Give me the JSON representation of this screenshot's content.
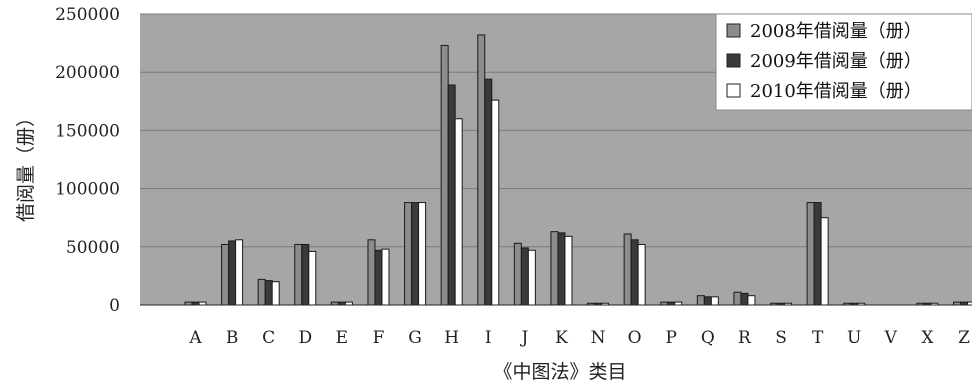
{
  "chart_data": {
    "type": "bar",
    "title": "",
    "xlabel": "《中图法》类目",
    "ylabel": "借阅量（册）",
    "ylim": [
      0,
      250000
    ],
    "yticks": [
      0,
      50000,
      100000,
      150000,
      200000,
      250000
    ],
    "ytick_labels": [
      "0",
      "50000",
      "100000",
      "150000",
      "200000",
      "250000"
    ],
    "grid": true,
    "legend_position": "top-right",
    "categories": [
      "A",
      "B",
      "C",
      "D",
      "E",
      "F",
      "G",
      "H",
      "I",
      "J",
      "K",
      "N",
      "O",
      "P",
      "Q",
      "R",
      "S",
      "T",
      "U",
      "V",
      "X",
      "Z"
    ],
    "series": [
      {
        "name": "2008年借阅量（册）",
        "color": "#8c8c8c",
        "values": [
          2500,
          52000,
          22000,
          52000,
          2500,
          56000,
          88000,
          223000,
          232000,
          53000,
          63000,
          1500,
          61000,
          2500,
          8000,
          11000,
          1500,
          88000,
          1500,
          0,
          1500,
          2500
        ]
      },
      {
        "name": "2009年借阅量（册）",
        "color": "#3a3a3a",
        "values": [
          2500,
          55000,
          21000,
          52000,
          2500,
          47000,
          88000,
          189000,
          194000,
          49000,
          62000,
          1500,
          56000,
          2500,
          7000,
          10000,
          1500,
          88000,
          1500,
          0,
          1500,
          2500
        ]
      },
      {
        "name": "2010年借阅量（册）",
        "color": "#ffffff",
        "values": [
          2500,
          56000,
          20000,
          46000,
          2500,
          48000,
          88000,
          160000,
          176000,
          47000,
          59000,
          1500,
          52000,
          2500,
          7000,
          8000,
          1500,
          75000,
          1500,
          0,
          1500,
          2500
        ]
      }
    ]
  }
}
